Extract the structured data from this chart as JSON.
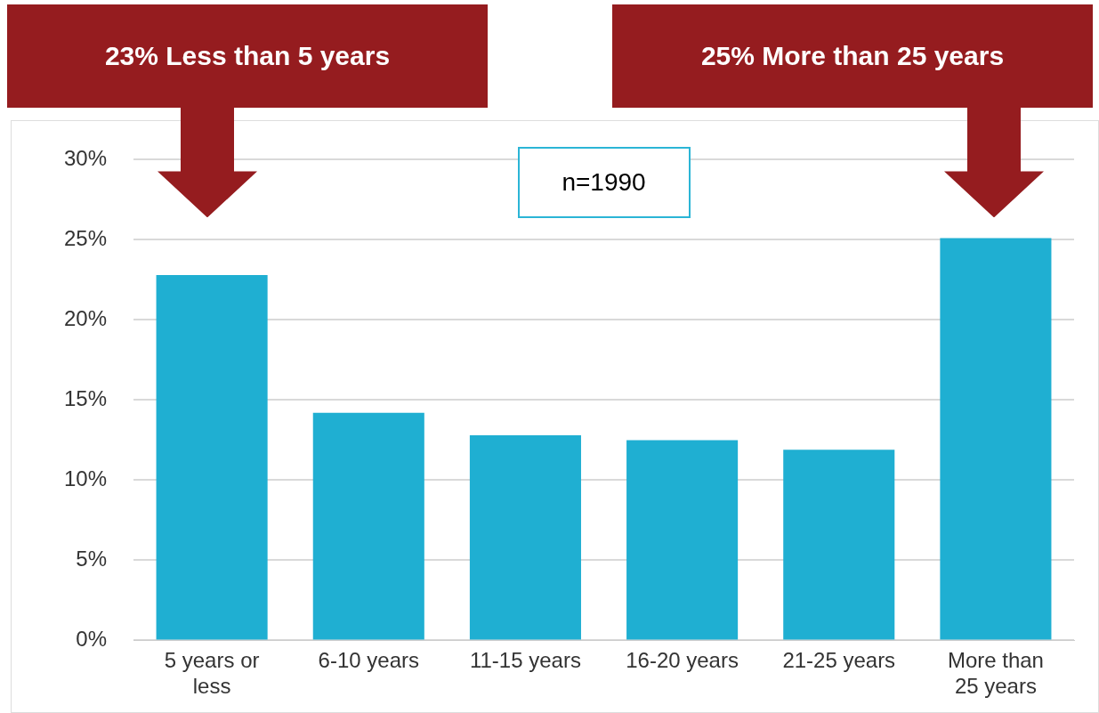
{
  "chart_data": {
    "type": "bar",
    "categories": [
      "5 years or less",
      "6-10 years",
      "11-15 years",
      "16-20 years",
      "21-25 years",
      "More than 25 years"
    ],
    "values": [
      22.8,
      14.2,
      12.8,
      12.5,
      11.9,
      25.1
    ],
    "color": "#1fafd2",
    "ylim": [
      0,
      30
    ],
    "yticks": [
      {
        "value": 0,
        "label": "0%"
      },
      {
        "value": 5,
        "label": "5%"
      },
      {
        "value": 10,
        "label": "10%"
      },
      {
        "value": 15,
        "label": "15%"
      },
      {
        "value": 20,
        "label": "20%"
      },
      {
        "value": 25,
        "label": "25%"
      },
      {
        "value": 30,
        "label": "30%"
      }
    ],
    "grid": "y",
    "legend": false,
    "annotations": [
      "23% Less than 5 years",
      "25% More than 25 years",
      "n=1990"
    ]
  }
}
